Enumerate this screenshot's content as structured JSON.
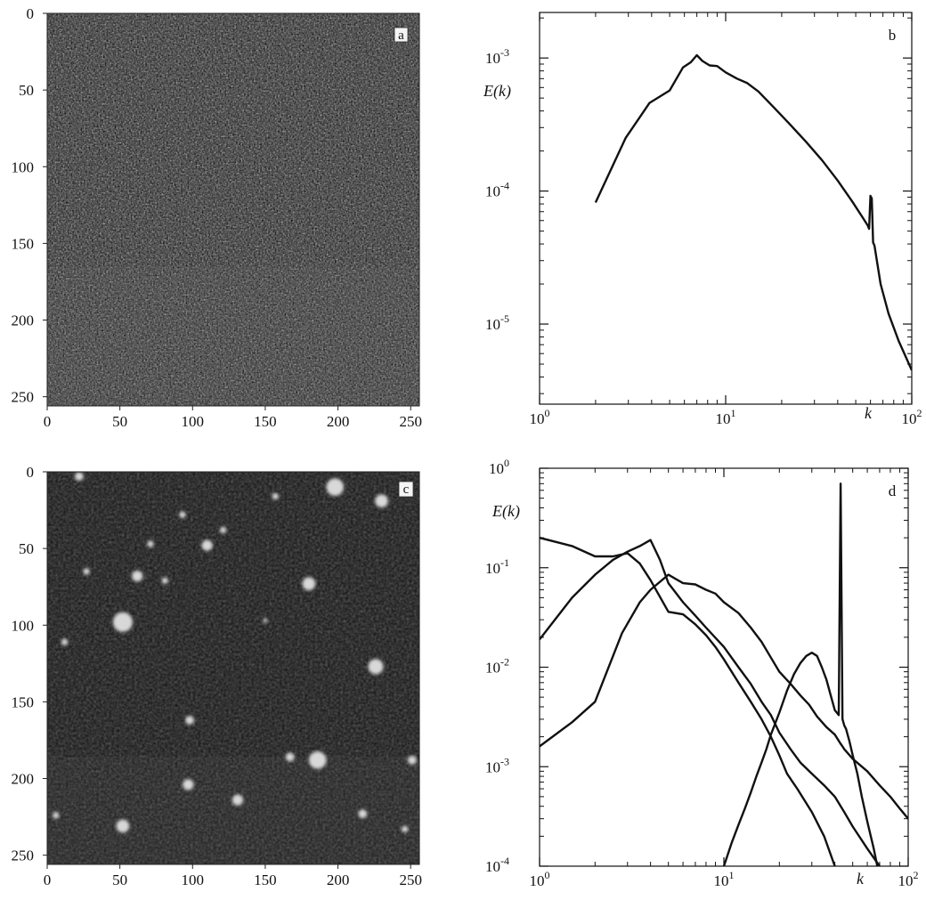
{
  "chart_data": [
    {
      "id": "a",
      "type": "heatmap",
      "panel_label": "a",
      "title": "",
      "xlabel": "",
      "ylabel": "",
      "xlim": [
        0,
        256
      ],
      "ylim": [
        256,
        0
      ],
      "x_ticks": [
        "0",
        "50",
        "100",
        "150",
        "200",
        "250"
      ],
      "y_ticks": [
        "0",
        "50",
        "100",
        "150",
        "200",
        "250"
      ],
      "texture": "fine-noise",
      "colors": {
        "background": "#1a1a1a",
        "speck": "#9a9a9a"
      }
    },
    {
      "id": "b",
      "type": "line",
      "panel_label": "b",
      "title": "",
      "xlabel": "k",
      "ylabel": "E(k)",
      "x_scale": "log",
      "y_scale": "log",
      "xlim": [
        1,
        100
      ],
      "ylim": [
        2.5e-06,
        0.0022
      ],
      "x_ticks": [
        {
          "value": 1,
          "base": "10",
          "exp": "0"
        },
        {
          "value": 10,
          "base": "10",
          "exp": "1"
        },
        {
          "value": 100,
          "base": "10",
          "exp": "2"
        }
      ],
      "y_ticks": [
        {
          "value": 1e-05,
          "base": "10",
          "exp": "-5"
        },
        {
          "value": 0.0001,
          "base": "10",
          "exp": "-4"
        },
        {
          "value": 0.001,
          "base": "10",
          "exp": "-3"
        }
      ],
      "series": [
        {
          "x": [
            2,
            2.9,
            3.9,
            5,
            5.9,
            6.5,
            7,
            7.5,
            8.2,
            9,
            10,
            11.5,
            13,
            15,
            18,
            22,
            27,
            33,
            40,
            48,
            55,
            58,
            59,
            60,
            61,
            62,
            63,
            68,
            75,
            85,
            100
          ],
          "y": [
            8.2e-05,
            0.00025,
            0.00046,
            0.00057,
            0.00085,
            0.00093,
            0.00105,
            0.00095,
            0.00088,
            0.00087,
            0.00078,
            0.0007,
            0.00065,
            0.00056,
            0.00043,
            0.00032,
            0.000235,
            0.00017,
            0.00012,
            8.3e-05,
            6.2e-05,
            5.5e-05,
            5.2e-05,
            9.2e-05,
            8.8e-05,
            4.1e-05,
            3.9e-05,
            2e-05,
            1.2e-05,
            7.5e-06,
            4.5e-06
          ]
        }
      ]
    },
    {
      "id": "c",
      "type": "heatmap",
      "panel_label": "c",
      "title": "",
      "xlabel": "",
      "ylabel": "",
      "xlim": [
        0,
        256
      ],
      "ylim": [
        256,
        0
      ],
      "x_ticks": [
        "0",
        "50",
        "100",
        "150",
        "200",
        "250"
      ],
      "y_ticks": [
        "0",
        "50",
        "100",
        "150",
        "200",
        "250"
      ],
      "texture": "sparse-blobs",
      "colors": {
        "background": "#141414",
        "blob": "#d8d8d8"
      },
      "blobs": [
        {
          "x": 22,
          "y": 3,
          "r": 4
        },
        {
          "x": 198,
          "y": 10,
          "r": 8
        },
        {
          "x": 230,
          "y": 19,
          "r": 6
        },
        {
          "x": 157,
          "y": 16,
          "r": 3
        },
        {
          "x": 93,
          "y": 28,
          "r": 3
        },
        {
          "x": 121,
          "y": 38,
          "r": 3
        },
        {
          "x": 110,
          "y": 48,
          "r": 5
        },
        {
          "x": 71,
          "y": 47,
          "r": 3
        },
        {
          "x": 62,
          "y": 68,
          "r": 5
        },
        {
          "x": 81,
          "y": 71,
          "r": 3
        },
        {
          "x": 27,
          "y": 65,
          "r": 3
        },
        {
          "x": 180,
          "y": 73,
          "r": 6
        },
        {
          "x": 52,
          "y": 98,
          "r": 9
        },
        {
          "x": 150,
          "y": 97,
          "r": 2
        },
        {
          "x": 12,
          "y": 111,
          "r": 3
        },
        {
          "x": 226,
          "y": 127,
          "r": 7
        },
        {
          "x": 98,
          "y": 162,
          "r": 4
        },
        {
          "x": 167,
          "y": 186,
          "r": 4
        },
        {
          "x": 186,
          "y": 188,
          "r": 8
        },
        {
          "x": 251,
          "y": 188,
          "r": 4
        },
        {
          "x": 97,
          "y": 204,
          "r": 5
        },
        {
          "x": 131,
          "y": 214,
          "r": 5
        },
        {
          "x": 217,
          "y": 223,
          "r": 4
        },
        {
          "x": 6,
          "y": 224,
          "r": 3
        },
        {
          "x": 52,
          "y": 231,
          "r": 6
        },
        {
          "x": 246,
          "y": 233,
          "r": 3
        }
      ]
    },
    {
      "id": "d",
      "type": "line",
      "panel_label": "d",
      "title": "",
      "xlabel": "k",
      "ylabel": "E(k)",
      "x_scale": "log",
      "y_scale": "log",
      "xlim": [
        1,
        100
      ],
      "ylim": [
        0.0001,
        1
      ],
      "x_ticks": [
        {
          "value": 1,
          "base": "10",
          "exp": "0"
        },
        {
          "value": 10,
          "base": "10",
          "exp": "1"
        },
        {
          "value": 100,
          "base": "10",
          "exp": "2"
        }
      ],
      "y_ticks": [
        {
          "value": 0.0001,
          "base": "10",
          "exp": "-4"
        },
        {
          "value": 0.001,
          "base": "10",
          "exp": "-3"
        },
        {
          "value": 0.01,
          "base": "10",
          "exp": "-2"
        },
        {
          "value": 0.1,
          "base": "10",
          "exp": "-1"
        },
        {
          "value": 1,
          "base": "10",
          "exp": "0"
        }
      ],
      "series": [
        {
          "x": [
            1,
            1.5,
            2,
            2.8,
            3.5,
            4,
            5,
            6,
            7,
            8,
            9,
            10,
            12,
            14,
            16,
            18,
            20,
            23,
            26,
            29,
            32,
            36,
            40,
            43,
            44,
            45,
            50,
            60,
            70,
            80,
            90,
            100
          ],
          "y": [
            0.0016,
            0.0028,
            0.0045,
            0.022,
            0.045,
            0.06,
            0.085,
            0.07,
            0.068,
            0.06,
            0.055,
            0.045,
            0.035,
            0.025,
            0.018,
            0.0125,
            0.009,
            0.0068,
            0.0052,
            0.0042,
            0.0032,
            0.0025,
            0.0021,
            0.0017,
            0.0016,
            0.0015,
            0.0012,
            0.0009,
            0.00065,
            0.0005,
            0.00038,
            0.0003
          ]
        },
        {
          "x": [
            1,
            1.5,
            2,
            2.5,
            3,
            3.5,
            4,
            4.5,
            5,
            6,
            7,
            8,
            10,
            12,
            14,
            16,
            18,
            20,
            23,
            26,
            30,
            35,
            40,
            45,
            50,
            60,
            70
          ],
          "y": [
            0.019,
            0.05,
            0.085,
            0.12,
            0.145,
            0.165,
            0.19,
            0.12,
            0.07,
            0.045,
            0.033,
            0.025,
            0.016,
            0.01,
            0.0068,
            0.0045,
            0.0033,
            0.0022,
            0.0015,
            0.0011,
            0.00085,
            0.00065,
            0.0005,
            0.00035,
            0.00025,
            0.00015,
            0.0001
          ]
        },
        {
          "x": [
            1,
            1.5,
            2,
            2.5,
            3,
            3.5,
            4,
            5,
            6,
            7,
            8,
            9,
            10,
            12,
            14,
            16,
            18,
            20,
            22,
            25,
            30,
            35,
            40
          ],
          "y": [
            0.2,
            0.165,
            0.13,
            0.13,
            0.14,
            0.11,
            0.075,
            0.036,
            0.034,
            0.027,
            0.021,
            0.016,
            0.012,
            0.007,
            0.0045,
            0.003,
            0.002,
            0.0013,
            0.00085,
            0.0006,
            0.00035,
            0.0002,
            0.0001
          ]
        },
        {
          "x": [
            10,
            11,
            12,
            13,
            14,
            15,
            16,
            17,
            18,
            20,
            22,
            24,
            26,
            28,
            30,
            32,
            34,
            36,
            38,
            40,
            42,
            43,
            44,
            44.5,
            45,
            46,
            48,
            50,
            53,
            56,
            60,
            65,
            68
          ],
          "y": [
            0.0001,
            0.00017,
            0.00026,
            0.00038,
            0.00055,
            0.0008,
            0.0011,
            0.0015,
            0.0021,
            0.0035,
            0.0058,
            0.0085,
            0.011,
            0.013,
            0.014,
            0.013,
            0.01,
            0.0075,
            0.0052,
            0.0037,
            0.0033,
            0.7,
            0.003,
            0.0028,
            0.0026,
            0.0024,
            0.0018,
            0.0013,
            0.00085,
            0.0005,
            0.00028,
            0.00015,
            0.0001
          ]
        }
      ]
    }
  ]
}
